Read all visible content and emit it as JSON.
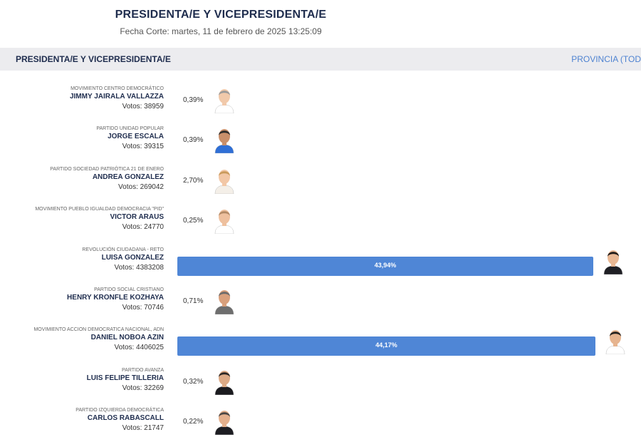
{
  "header": {
    "title": "PRESIDENTA/E Y VICEPRESIDENTA/E",
    "subtitle": "Fecha Corte: martes, 11 de febrero de 2025 13:25:09"
  },
  "section": {
    "title": "PRESIDENTA/E Y VICEPRESIDENTA/E",
    "province_link": "PROVINCIA (TOD"
  },
  "colors": {
    "bar": "#4f86d6",
    "title": "#1f2d4e",
    "link": "#4f83d1",
    "section_bg": "#ececef"
  },
  "chart_data": {
    "type": "bar",
    "orientation": "horizontal",
    "categories": [
      "JIMMY JAIRALA VALLAZZA",
      "JORGE ESCALA",
      "ANDREA GONZALEZ",
      "VICTOR ARAUS",
      "LUISA GONZALEZ",
      "HENRY KRONFLE KOZHAYA",
      "DANIEL NOBOA AZIN",
      "LUIS FELIPE TILLERIA",
      "CARLOS RABASCALL"
    ],
    "values": [
      0.39,
      0.39,
      2.7,
      0.25,
      43.94,
      0.71,
      44.17,
      0.32,
      0.22
    ],
    "candidates": [
      {
        "party": "MOVIMIENTO CENTRO DEMOCRÁTICO",
        "name": "JIMMY JAIRALA VALLAZZA",
        "votes_label": "Votos: 38959",
        "votes": 38959,
        "pct": 0.39,
        "pct_label": "0,39%",
        "bar_label": "",
        "photo": {
          "skin": "#f1c9aa",
          "hair": "#9a9a9a",
          "shirt": "#ffffff"
        }
      },
      {
        "party": "PARTIDO UNIDAD POPULAR",
        "name": "JORGE ESCALA",
        "votes_label": "Votos: 39315",
        "votes": 39315,
        "pct": 0.39,
        "pct_label": "0,39%",
        "bar_label": "",
        "photo": {
          "skin": "#c98f6a",
          "hair": "#2b2b2b",
          "shirt": "#2f6fd6"
        }
      },
      {
        "party": "PARTIDO SOCIEDAD PATRIÓTICA 21 DE ENERO",
        "name": "ANDREA GONZALEZ",
        "votes_label": "Votos: 269042",
        "votes": 269042,
        "pct": 2.7,
        "pct_label": "2,70%",
        "bar_label": "",
        "photo": {
          "skin": "#f2c7a6",
          "hair": "#c99a5b",
          "shirt": "#f4efe8"
        }
      },
      {
        "party": "MOVIMIENTO PUEBLO IGUALDAD DEMOCRACIA \"PID\"",
        "name": "VICTOR ARAUS",
        "votes_label": "Votos: 24770",
        "votes": 24770,
        "pct": 0.25,
        "pct_label": "0,25%",
        "bar_label": "",
        "photo": {
          "skin": "#eec09e",
          "hair": "#b28a66",
          "shirt": "#ffffff"
        }
      },
      {
        "party": "REVOLUCIÓN CIUDADANA - RETO",
        "name": "LUISA GONZALEZ",
        "votes_label": "Votos: 4383208",
        "votes": 4383208,
        "pct": 43.94,
        "pct_label": "",
        "bar_label": "43,94%",
        "photo": {
          "skin": "#e9b894",
          "hair": "#1e1a18",
          "shirt": "#1f1f24"
        }
      },
      {
        "party": "PARTIDO SOCIAL CRISTIANO",
        "name": "HENRY KRONFLE KOZHAYA",
        "votes_label": "Votos: 70746",
        "votes": 70746,
        "pct": 0.71,
        "pct_label": "0,71%",
        "bar_label": "",
        "photo": {
          "skin": "#d9a07c",
          "hair": "#6b6b6b",
          "shirt": "#6e6e6e"
        }
      },
      {
        "party": "MOVIMIENTO ACCION DEMOCRATICA NACIONAL, ADN",
        "name": "DANIEL NOBOA AZIN",
        "votes_label": "Votos: 4406025",
        "votes": 4406025,
        "pct": 44.17,
        "pct_label": "",
        "bar_label": "44,17%",
        "photo": {
          "skin": "#e6b48f",
          "hair": "#23201e",
          "shirt": "#ffffff"
        }
      },
      {
        "party": "PARTIDO AVANZA",
        "name": "LUIS FELIPE TILLERIA",
        "votes_label": "Votos: 32269",
        "votes": 32269,
        "pct": 0.32,
        "pct_label": "0,32%",
        "bar_label": "",
        "photo": {
          "skin": "#dcaa86",
          "hair": "#2a2624",
          "shirt": "#1b1b1f"
        }
      },
      {
        "party": "PARTIDO IZQUIERDA DEMOCRÁTICA",
        "name": "CARLOS RABASCALL",
        "votes_label": "Votos: 21747",
        "votes": 21747,
        "pct": 0.22,
        "pct_label": "0,22%",
        "bar_label": "",
        "photo": {
          "skin": "#e4b08d",
          "hair": "#4a4644",
          "shirt": "#1d1d22"
        }
      }
    ]
  }
}
